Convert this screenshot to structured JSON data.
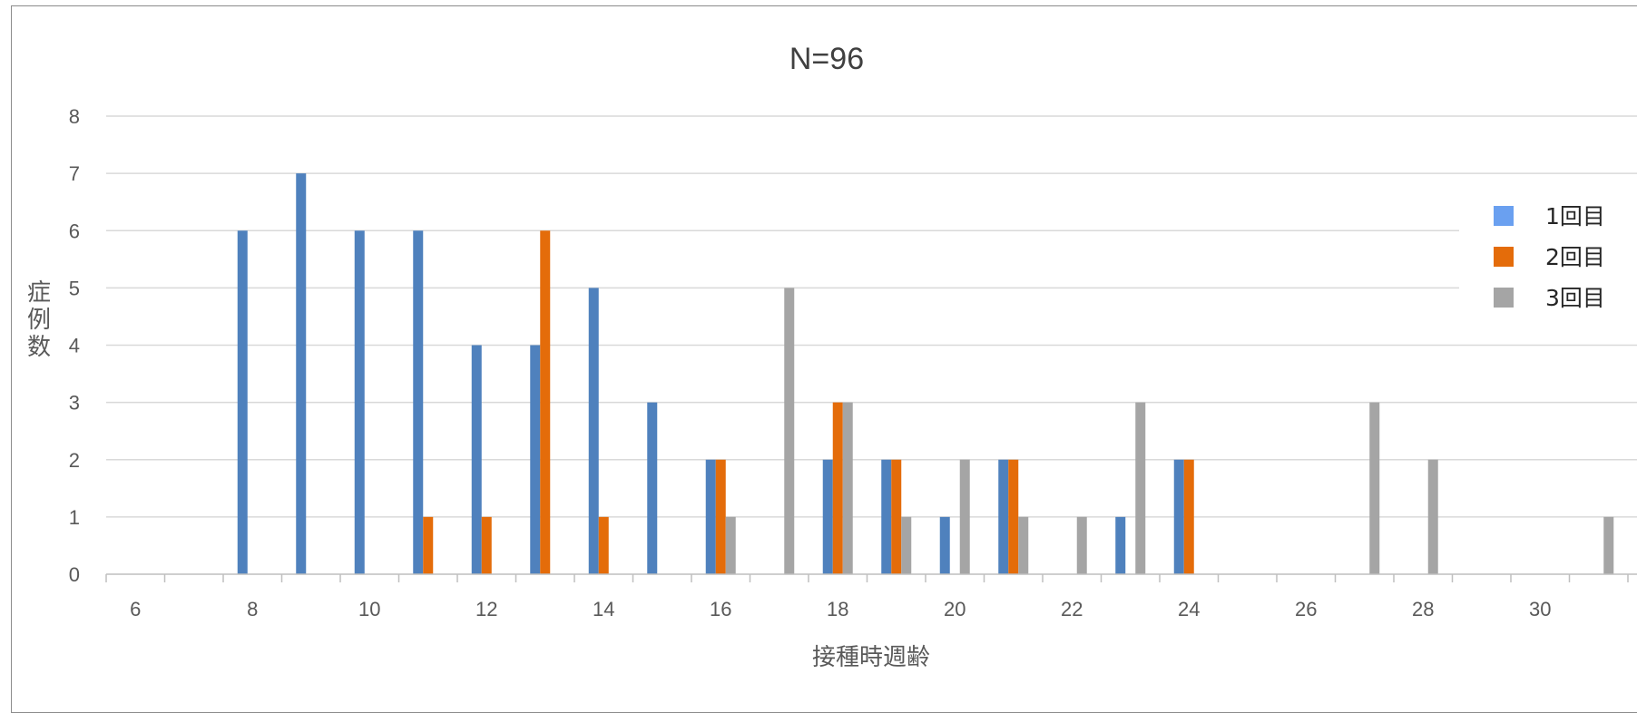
{
  "chart_data": {
    "type": "bar",
    "title": "N=96",
    "xlabel": "接種時週齢",
    "ylabel": "症例数",
    "xlim": [
      5.5,
      31.5
    ],
    "ylim": [
      0,
      8
    ],
    "x_ticks": [
      6,
      8,
      10,
      12,
      14,
      16,
      18,
      20,
      22,
      24,
      26,
      28,
      30
    ],
    "y_ticks": [
      0,
      1,
      2,
      3,
      4,
      5,
      6,
      7,
      8
    ],
    "grid": true,
    "legend_position": "right",
    "x": [
      6,
      7,
      8,
      9,
      10,
      11,
      12,
      13,
      14,
      15,
      16,
      17,
      18,
      19,
      20,
      21,
      22,
      23,
      24,
      25,
      26,
      27,
      28,
      29,
      30,
      31
    ],
    "series": [
      {
        "name": "1回目",
        "color": "#4f81bd",
        "legend_color": "#6aa0f0",
        "values": [
          0,
          0,
          6,
          7,
          6,
          6,
          4,
          4,
          5,
          3,
          2,
          0,
          2,
          2,
          1,
          2,
          0,
          1,
          2,
          0,
          0,
          0,
          0,
          0,
          0,
          0
        ]
      },
      {
        "name": "2回目",
        "color": "#e46c0a",
        "legend_color": "#e46c0a",
        "values": [
          0,
          0,
          0,
          0,
          0,
          1,
          1,
          6,
          1,
          0,
          2,
          0,
          3,
          2,
          0,
          2,
          0,
          0,
          2,
          0,
          0,
          0,
          0,
          0,
          0,
          0
        ]
      },
      {
        "name": "3回目",
        "color": "#a5a5a5",
        "legend_color": "#a5a5a5",
        "values": [
          0,
          0,
          0,
          0,
          0,
          0,
          0,
          0,
          0,
          0,
          1,
          5,
          3,
          1,
          2,
          1,
          1,
          3,
          0,
          0,
          0,
          3,
          2,
          0,
          0,
          1
        ]
      }
    ]
  }
}
